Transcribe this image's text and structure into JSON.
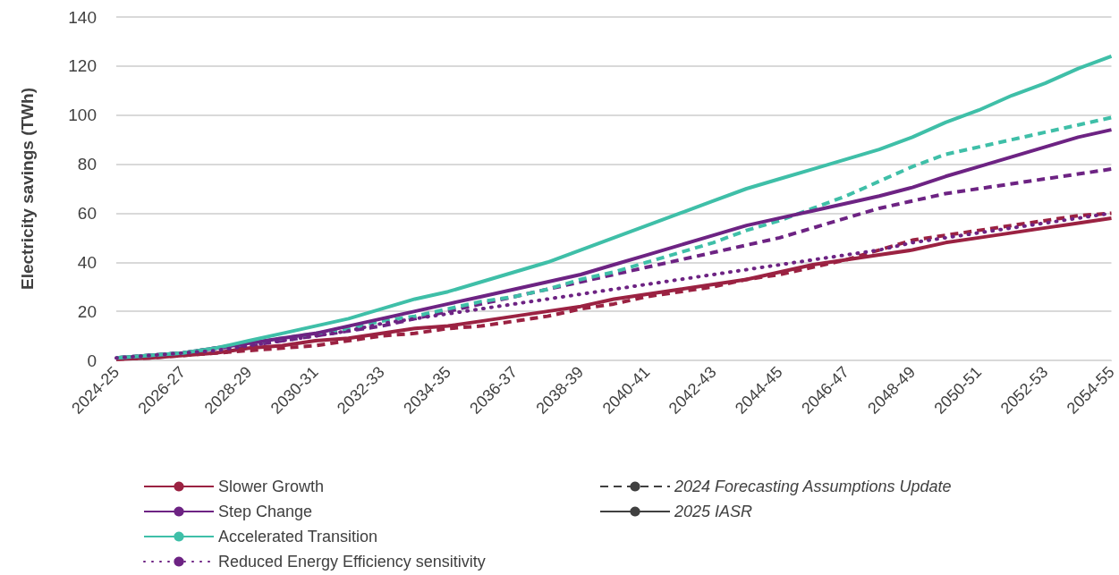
{
  "chart_data": {
    "type": "line",
    "ylabel": "Electricity savings (TWh)",
    "categories": [
      "2024-25",
      null,
      "2026-27",
      null,
      "2028-29",
      null,
      "2030-31",
      null,
      "2032-33",
      null,
      "2034-35",
      null,
      "2036-37",
      null,
      "2038-39",
      null,
      "2040-41",
      null,
      "2042-43",
      null,
      "2044-45",
      null,
      "2046-47",
      null,
      "2048-49",
      null,
      "2050-51",
      null,
      "2052-53",
      null,
      "2054-55"
    ],
    "series": [
      {
        "name": "Slower Growth",
        "color": "#9b2242",
        "line_style": "solid",
        "values": [
          0.5,
          1,
          2,
          3,
          5,
          6,
          8,
          9,
          11,
          13,
          14,
          16,
          18,
          20,
          22,
          25,
          27,
          29,
          31,
          33,
          36,
          39,
          41,
          43,
          45,
          48,
          50,
          52,
          54,
          56,
          58
        ]
      },
      {
        "name": "Step Change",
        "color": "#6d2383",
        "line_style": "solid",
        "values": [
          1,
          2,
          3,
          5,
          7,
          9,
          11,
          14,
          17,
          20,
          23,
          26,
          29,
          32,
          35,
          39,
          43,
          47,
          51,
          55,
          58,
          61,
          64,
          67,
          70.5,
          75,
          79,
          83,
          87,
          91,
          94
        ]
      },
      {
        "name": "Accelerated Transition",
        "color": "#3fbfa8",
        "line_style": "solid",
        "values": [
          1,
          2,
          3,
          5,
          8,
          11,
          14,
          17,
          21,
          25,
          28,
          32,
          36,
          40,
          45,
          50,
          55,
          60,
          65,
          70,
          74,
          78,
          82,
          86,
          91,
          97,
          102,
          108,
          113,
          119,
          124
        ]
      },
      {
        "name": "Reduced Energy Efficiency sensitivity",
        "color": "#6d2383",
        "line_style": "dotted",
        "values": [
          1,
          2,
          3,
          4,
          6,
          8,
          10,
          12,
          15,
          17,
          19,
          21,
          23,
          25,
          27,
          29,
          31,
          33,
          35,
          37,
          39,
          41,
          43,
          45,
          48,
          50,
          52,
          54,
          56,
          58,
          60
        ]
      },
      {
        "color": "#9b2242",
        "line_style": "dashed",
        "values": [
          0.5,
          1,
          2,
          3,
          4,
          5,
          6,
          8,
          10,
          11,
          13,
          14,
          16,
          18,
          21,
          23,
          26,
          28,
          30,
          33,
          35,
          38,
          41,
          45,
          49,
          51,
          53,
          55,
          57,
          59,
          60
        ]
      },
      {
        "color": "#6d2383",
        "line_style": "dashed",
        "values": [
          1,
          2,
          3,
          5,
          6,
          8,
          10,
          12,
          14,
          17,
          20,
          23,
          26,
          29,
          32,
          35,
          38,
          41,
          44,
          47,
          50,
          54,
          58,
          62,
          65,
          68,
          70,
          72,
          74,
          76,
          78
        ]
      },
      {
        "color": "#3fbfa8",
        "line_style": "dashed",
        "values": [
          1,
          2,
          3,
          5,
          7,
          9,
          11,
          13,
          16,
          18,
          21,
          24,
          26,
          29,
          33,
          36,
          40,
          44,
          48,
          53,
          57,
          62,
          67,
          73,
          79,
          84,
          87,
          90,
          93,
          96,
          99
        ]
      },
      {
        "name": "2024 Forecasting Assumptions Update",
        "color": "#404040",
        "line_style": "dashed",
        "values": [
          null,
          null,
          null,
          null,
          null,
          null,
          null,
          null,
          null,
          null,
          null,
          null,
          null,
          null,
          null,
          null,
          null,
          null,
          null,
          null,
          null,
          null,
          null,
          null,
          null,
          null,
          null,
          null,
          null,
          null,
          null
        ]
      },
      {
        "name": "2025 IASR",
        "color": "#404040",
        "line_style": "solid",
        "values": [
          null,
          null,
          null,
          null,
          null,
          null,
          null,
          null,
          null,
          null,
          null,
          null,
          null,
          null,
          null,
          null,
          null,
          null,
          null,
          null,
          null,
          null,
          null,
          null,
          null,
          null,
          null,
          null,
          null,
          null,
          null
        ]
      }
    ],
    "ylim": [
      0,
      140
    ],
    "yticks": [
      0,
      20,
      40,
      60,
      80,
      100,
      120,
      140
    ],
    "grid": "y",
    "legend": "bottom",
    "marker": "none"
  }
}
